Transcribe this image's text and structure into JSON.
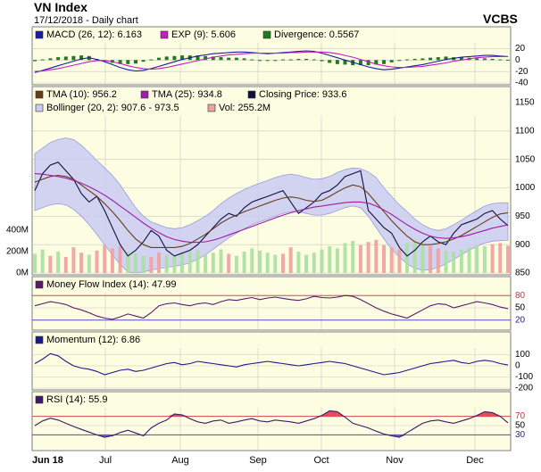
{
  "header": {
    "title": "VN Index",
    "subtitle": "17/12/2018 - Daily chart",
    "brand": "VCBS"
  },
  "colors": {
    "panel_bg": "#fdfde2",
    "panel_border": "#7f7f7f",
    "grid": "#c8c8c8",
    "macd": "#1a1aa6",
    "exp": "#c21ec2",
    "divergence": "#1d7a1d",
    "tma10": "#6b3a1a",
    "tma25": "#a11aa8",
    "close": "#101040",
    "bollinger_fill": "#c9cbf2",
    "bollinger_line": "#9a9ce0",
    "vol_up": "#a8e0a0",
    "vol_down": "#efa0a0",
    "mfi": "#5a1a6a",
    "momentum": "#1a1a8a",
    "rsi": "#3a1a6a",
    "overbought_fill": "#e64a5a",
    "oversold_fill": "#6a5ad0",
    "ref_red": "#d05050",
    "ref_blue": "#5050c0",
    "tick_red": "#d03030"
  },
  "x_axis": {
    "labels": [
      "Jun 18",
      "Jul",
      "Aug",
      "Sep",
      "Oct",
      "Nov",
      "Dec"
    ]
  },
  "chart_data": [
    {
      "type": "bar",
      "panel": "macd",
      "legend": [
        {
          "label": "MACD (26, 12): 6.163",
          "color": "#1a1aa6"
        },
        {
          "label": "EXP (9): 5.606",
          "color": "#c21ec2"
        },
        {
          "label": "Divergence: 0.5567",
          "color": "#1d7a1d"
        }
      ],
      "ylim": [
        -40,
        30
      ],
      "y_ticks": [
        {
          "value": 20,
          "label": "20"
        },
        {
          "value": 0,
          "label": "0"
        },
        {
          "value": -20,
          "label": "-20"
        },
        {
          "value": -40,
          "label": "-40"
        }
      ],
      "series": [
        {
          "name": "MACD (26, 12)",
          "kind": "line",
          "values": [
            -22,
            -18,
            -14,
            -10,
            -6,
            -2,
            2,
            4,
            1,
            -3,
            -8,
            -13,
            -17,
            -19,
            -18,
            -15,
            -11,
            -7,
            -3,
            1,
            4,
            7,
            9,
            11,
            12,
            13,
            14,
            14,
            13,
            12,
            11,
            12,
            13,
            14,
            15,
            16,
            15,
            12,
            8,
            4,
            0,
            -4,
            -8,
            -12,
            -15,
            -17,
            -16,
            -14,
            -12,
            -10,
            -8,
            -5,
            -2,
            1,
            3,
            5,
            6,
            7,
            8,
            8,
            7,
            6
          ]
        },
        {
          "name": "EXP (9)",
          "kind": "line",
          "values": [
            -20,
            -19,
            -17,
            -15,
            -12,
            -9,
            -6,
            -3,
            -1,
            -1,
            -3,
            -6,
            -10,
            -13,
            -15,
            -16,
            -15,
            -13,
            -10,
            -7,
            -4,
            -1,
            2,
            5,
            7,
            9,
            10,
            11,
            12,
            12,
            12,
            12,
            12,
            13,
            13,
            14,
            14,
            14,
            13,
            11,
            8,
            5,
            1,
            -3,
            -7,
            -10,
            -12,
            -13,
            -13,
            -12,
            -11,
            -9,
            -7,
            -5,
            -2,
            0,
            2,
            4,
            5,
            6,
            6,
            6
          ]
        }
      ],
      "divergence": [
        -2,
        1,
        3,
        5,
        6,
        7,
        8,
        7,
        2,
        -2,
        -5,
        -7,
        -7,
        -6,
        -3,
        1,
        4,
        6,
        7,
        8,
        8,
        8,
        7,
        6,
        5,
        4,
        4,
        3,
        1,
        0,
        -1,
        0,
        1,
        1,
        2,
        2,
        1,
        -2,
        -5,
        -7,
        -8,
        -9,
        -9,
        -9,
        -8,
        -7,
        -4,
        -1,
        1,
        2,
        3,
        4,
        5,
        6,
        5,
        5,
        4,
        3,
        3,
        2,
        1,
        0.5567
      ]
    },
    {
      "type": "line",
      "panel": "price",
      "legend": [
        {
          "label": "TMA (10): 956.2",
          "color": "#6b3a1a"
        },
        {
          "label": "TMA (25): 934.8",
          "color": "#a11aa8"
        },
        {
          "label": "Closing Price: 933.6",
          "color": "#101040"
        },
        {
          "label": "Bollinger (20, 2): 907.6 - 973.5",
          "color": "#c9cbf2"
        },
        {
          "label": "Vol: 255.2M",
          "color": "#efa0a0"
        }
      ],
      "ylim": [
        850,
        1150
      ],
      "y_ticks": [
        {
          "value": 1150,
          "label": "1150"
        },
        {
          "value": 1100,
          "label": "1100"
        },
        {
          "value": 1050,
          "label": "1050"
        },
        {
          "value": 1000,
          "label": "1000"
        },
        {
          "value": 950,
          "label": "950"
        },
        {
          "value": 900,
          "label": "900"
        },
        {
          "value": 850,
          "label": "850"
        }
      ],
      "volume_ticks": [
        {
          "value": 400,
          "label": "400M"
        },
        {
          "value": 200,
          "label": "200M"
        },
        {
          "value": 0,
          "label": "0M"
        }
      ],
      "series": [
        {
          "name": "Closing Price",
          "kind": "line",
          "values": [
            995,
            1025,
            1040,
            1045,
            1030,
            1015,
            990,
            975,
            985,
            960,
            930,
            900,
            880,
            890,
            905,
            925,
            915,
            890,
            880,
            885,
            890,
            900,
            915,
            930,
            945,
            955,
            950,
            965,
            975,
            980,
            985,
            990,
            995,
            975,
            955,
            965,
            975,
            990,
            995,
            1005,
            1020,
            1025,
            1030,
            960,
            945,
            930,
            920,
            895,
            880,
            890,
            905,
            915,
            905,
            900,
            920,
            935,
            940,
            945,
            955,
            960,
            945,
            933.6
          ]
        },
        {
          "name": "TMA (10)",
          "kind": "line",
          "values": [
            1010,
            1015,
            1020,
            1022,
            1020,
            1015,
            1005,
            995,
            985,
            972,
            958,
            942,
            925,
            910,
            900,
            895,
            895,
            895,
            895,
            897,
            902,
            910,
            918,
            928,
            938,
            946,
            952,
            958,
            963,
            968,
            973,
            978,
            982,
            984,
            982,
            978,
            976,
            978,
            985,
            993,
            1000,
            1005,
            1002,
            990,
            974,
            958,
            942,
            928,
            915,
            905,
            900,
            900,
            902,
            905,
            910,
            916,
            924,
            932,
            940,
            948,
            954,
            956.2
          ]
        },
        {
          "name": "TMA (25)",
          "kind": "line",
          "values": [
            1025,
            1024,
            1022,
            1020,
            1017,
            1013,
            1008,
            1002,
            995,
            987,
            978,
            968,
            958,
            948,
            938,
            929,
            921,
            914,
            909,
            906,
            904,
            904,
            905,
            908,
            912,
            917,
            922,
            927,
            932,
            937,
            942,
            947,
            952,
            956,
            960,
            963,
            966,
            968,
            970,
            972,
            974,
            975,
            975,
            973,
            968,
            961,
            953,
            944,
            935,
            927,
            920,
            915,
            912,
            911,
            912,
            914,
            917,
            921,
            925,
            929,
            932,
            934.8
          ]
        },
        {
          "name": "Bollinger upper",
          "kind": "band",
          "values": [
            1060,
            1070,
            1080,
            1085,
            1088,
            1085,
            1075,
            1062,
            1048,
            1035,
            1022,
            1005,
            985,
            965,
            950,
            940,
            935,
            930,
            928,
            930,
            935,
            942,
            950,
            960,
            972,
            982,
            990,
            997,
            1003,
            1008,
            1013,
            1018,
            1022,
            1024,
            1022,
            1018,
            1015,
            1016,
            1020,
            1027,
            1032,
            1035,
            1034,
            1028,
            1018,
            1000,
            985,
            970,
            958,
            945,
            935,
            928,
            925,
            928,
            935,
            943,
            952,
            960,
            968,
            972,
            974,
            973.5
          ]
        },
        {
          "name": "Bollinger lower",
          "kind": "band",
          "values": [
            960,
            965,
            970,
            972,
            970,
            962,
            950,
            935,
            918,
            900,
            882,
            865,
            852,
            850,
            852,
            855,
            858,
            860,
            862,
            864,
            868,
            874,
            882,
            892,
            902,
            912,
            920,
            928,
            935,
            940,
            945,
            950,
            955,
            958,
            958,
            955,
            952,
            952,
            955,
            960,
            965,
            968,
            965,
            950,
            930,
            910,
            892,
            878,
            866,
            858,
            855,
            856,
            860,
            866,
            874,
            882,
            890,
            897,
            903,
            906,
            907,
            907.6
          ]
        }
      ],
      "volume": [
        180,
        220,
        160,
        200,
        150,
        240,
        190,
        170,
        210,
        260,
        230,
        250,
        200,
        180,
        160,
        150,
        190,
        170,
        160,
        180,
        200,
        210,
        170,
        190,
        220,
        180,
        160,
        200,
        230,
        210,
        190,
        170,
        180,
        240,
        200,
        170,
        190,
        220,
        250,
        230,
        280,
        300,
        260,
        290,
        310,
        260,
        240,
        220,
        280,
        300,
        270,
        250,
        230,
        210,
        200,
        220,
        240,
        260,
        250,
        270,
        280,
        255.2
      ],
      "volume_direction": [
        1,
        1,
        0,
        1,
        0,
        0,
        0,
        1,
        0,
        0,
        0,
        0,
        1,
        1,
        1,
        0,
        0,
        1,
        1,
        1,
        1,
        1,
        1,
        1,
        1,
        0,
        1,
        1,
        1,
        1,
        1,
        1,
        0,
        0,
        1,
        1,
        1,
        1,
        1,
        1,
        1,
        1,
        0,
        0,
        0,
        0,
        0,
        0,
        1,
        1,
        1,
        0,
        0,
        1,
        1,
        1,
        1,
        1,
        1,
        0,
        0,
        0
      ]
    },
    {
      "type": "line",
      "panel": "mfi",
      "legend": [
        {
          "label": "Money Flow Index (14): 47.99",
          "color": "#5a1a6a"
        }
      ],
      "ylim": [
        0,
        100
      ],
      "y_ticks": [
        {
          "value": 80,
          "label": "80"
        },
        {
          "value": 50,
          "label": "50"
        },
        {
          "value": 20,
          "label": "20"
        }
      ],
      "reference_lines": [
        80,
        20
      ],
      "series": [
        {
          "name": "Money Flow Index (14)",
          "kind": "line",
          "values": [
            55,
            60,
            65,
            62,
            58,
            50,
            45,
            38,
            30,
            25,
            22,
            28,
            35,
            30,
            25,
            38,
            55,
            60,
            62,
            58,
            55,
            60,
            62,
            58,
            65,
            70,
            68,
            72,
            75,
            70,
            74,
            76,
            73,
            70,
            68,
            72,
            78,
            75,
            74,
            76,
            80,
            78,
            70,
            60,
            50,
            42,
            35,
            30,
            25,
            35,
            45,
            55,
            60,
            58,
            50,
            55,
            60,
            65,
            62,
            58,
            52,
            47.99
          ]
        }
      ]
    },
    {
      "type": "line",
      "panel": "momentum",
      "legend": [
        {
          "label": "Momentum (12): 6.86",
          "color": "#1a1a8a"
        }
      ],
      "ylim": [
        -200,
        200
      ],
      "y_ticks": [
        {
          "value": 100,
          "label": "100"
        },
        {
          "value": 0,
          "label": "0"
        },
        {
          "value": -100,
          "label": "-100"
        },
        {
          "value": -200,
          "label": "-200"
        }
      ],
      "series": [
        {
          "name": "Momentum (12)",
          "kind": "line",
          "values": [
            20,
            60,
            110,
            90,
            40,
            0,
            -20,
            -30,
            -50,
            -80,
            -60,
            -40,
            -30,
            -50,
            -40,
            -20,
            0,
            20,
            30,
            10,
            20,
            40,
            30,
            20,
            10,
            0,
            -10,
            10,
            20,
            30,
            40,
            30,
            20,
            10,
            0,
            10,
            20,
            30,
            40,
            30,
            20,
            0,
            -20,
            -40,
            -60,
            -80,
            -70,
            -60,
            -40,
            -20,
            0,
            20,
            30,
            40,
            50,
            30,
            20,
            40,
            50,
            40,
            20,
            6.86
          ]
        }
      ]
    },
    {
      "type": "area",
      "panel": "rsi",
      "legend": [
        {
          "label": "RSI (14): 55.9",
          "color": "#3a1a6a"
        }
      ],
      "ylim": [
        0,
        100
      ],
      "y_ticks": [
        {
          "value": 70,
          "label": "70"
        },
        {
          "value": 50,
          "label": "50"
        },
        {
          "value": 30,
          "label": "30"
        }
      ],
      "reference_lines": [
        70,
        30
      ],
      "series": [
        {
          "name": "RSI (14)",
          "kind": "line",
          "values": [
            50,
            60,
            66,
            62,
            55,
            48,
            42,
            36,
            30,
            25,
            28,
            35,
            40,
            34,
            28,
            45,
            55,
            62,
            75,
            73,
            65,
            58,
            55,
            60,
            62,
            55,
            58,
            62,
            65,
            60,
            58,
            62,
            60,
            58,
            55,
            60,
            65,
            72,
            82,
            80,
            68,
            55,
            50,
            45,
            38,
            32,
            28,
            25,
            35,
            45,
            55,
            60,
            62,
            58,
            55,
            60,
            65,
            72,
            80,
            78,
            70,
            55.9
          ]
        }
      ]
    }
  ]
}
